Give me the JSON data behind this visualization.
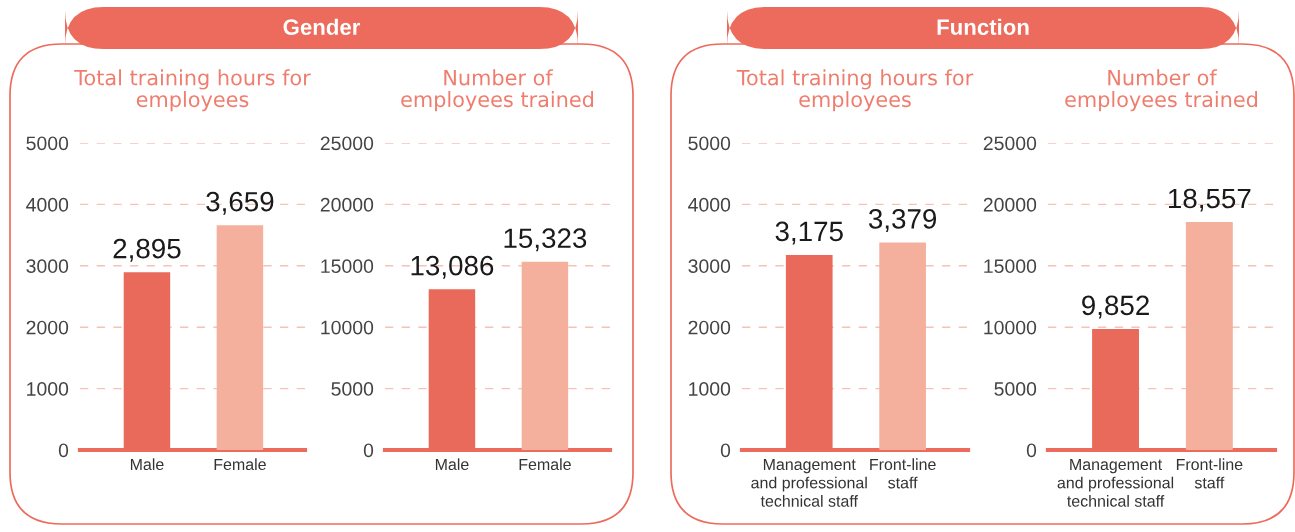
{
  "chart_data": [
    {
      "type": "bar",
      "annotations": [
        "Gender"
      ],
      "title": "Total training hours for\nemployees",
      "categories": [
        "Male",
        "Female"
      ],
      "values": [
        2895,
        3659
      ],
      "colors": [
        "#e9695a",
        "#f4b09d"
      ],
      "value_labels": [
        "2,895",
        "3,659"
      ],
      "ylim": [
        0,
        5000
      ],
      "yticks": [
        0,
        1000,
        2000,
        3000,
        4000,
        5000
      ],
      "grid": "y"
    },
    {
      "type": "bar",
      "title": "Number of\nemployees trained",
      "categories": [
        "Male",
        "Female"
      ],
      "values": [
        13086,
        15323
      ],
      "colors": [
        "#e9695a",
        "#f4b09d"
      ],
      "value_labels": [
        "13,086",
        "15,323"
      ],
      "ylim": [
        0,
        25000
      ],
      "yticks": [
        0,
        5000,
        10000,
        15000,
        20000,
        25000
      ],
      "grid": "y"
    },
    {
      "type": "bar",
      "annotations": [
        "Function"
      ],
      "title": "Total training hours for\nemployees",
      "categories": [
        "Management\nand professional\ntechnical staff",
        "Front-line\nstaff"
      ],
      "values": [
        3175,
        3379
      ],
      "colors": [
        "#e9695a",
        "#f4b09d"
      ],
      "value_labels": [
        "3,175",
        "3,379"
      ],
      "ylim": [
        0,
        5000
      ],
      "yticks": [
        0,
        1000,
        2000,
        3000,
        4000,
        5000
      ],
      "grid": "y"
    },
    {
      "type": "bar",
      "title": "Number of\nemployees trained",
      "categories": [
        "Management\nand professional\ntechnical staff",
        "Front-line\nstaff"
      ],
      "values": [
        9852,
        18557
      ],
      "colors": [
        "#e9695a",
        "#f4b09d"
      ],
      "value_labels": [
        "9,852",
        "18,557"
      ],
      "ylim": [
        0,
        25000
      ],
      "yticks": [
        0,
        5000,
        10000,
        15000,
        20000,
        25000
      ],
      "grid": "y"
    }
  ]
}
